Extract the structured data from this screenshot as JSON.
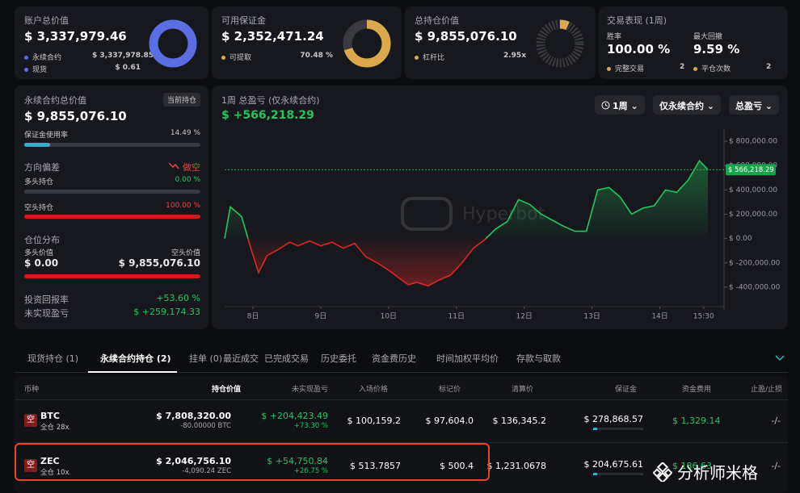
{
  "cards": [
    {
      "title": "账户总价值",
      "value": "$ 3,337,979.46",
      "rows": [
        {
          "label": "永续合约",
          "value": "$ 3,337,978.85"
        },
        {
          "label": "现货",
          "value": "$ 0.61"
        }
      ]
    },
    {
      "title": "可用保证金",
      "value": "$ 2,352,471.24",
      "rows": [
        {
          "label": "可提取",
          "value": "70.48 %"
        }
      ]
    },
    {
      "title": "总持仓价值",
      "value": "$ 9,855,076.10",
      "rows": [
        {
          "label": "杠杆比",
          "value": "2.95x"
        }
      ]
    },
    {
      "title": "交易表现 (1周)",
      "stats": [
        {
          "label": "胜率",
          "value": "100.00 %"
        },
        {
          "label": "最大回撤",
          "value": "9.59 %"
        }
      ],
      "rows": [
        {
          "label": "完整交易",
          "value": "2"
        },
        {
          "label": "平仓次数",
          "value": "2"
        }
      ]
    }
  ],
  "summary": {
    "title": "永续合约总价值",
    "badge": "当前持仓",
    "value": "$ 9,855,076.10",
    "margin_label": "保证金使用率",
    "margin_value": "14.49 %",
    "bias_label": "方向偏差",
    "bias_value": "做空",
    "long_label": "多头持仓",
    "long_value": "0.00 %",
    "short_label": "空头持仓",
    "short_value": "100.00 %",
    "dist_label": "仓位分布",
    "long_amount_label": "多头价值",
    "short_amount_label": "空头价值",
    "long_amount": "$ 0.00",
    "short_amount": "$ 9,855,076.10",
    "roi_label": "投资回报率",
    "roi_value": "+53.60 %",
    "upnl_label": "未实现盈亏",
    "upnl_value": "$ +259,174.33"
  },
  "chart_data": {
    "type": "line",
    "title": "1周 总盈亏 (仅永续合约)",
    "subtitle": "$ +566,218.29",
    "filters": [
      "1周",
      "仅永续合约",
      "总盈亏"
    ],
    "watermark": "Hyperbot",
    "x": [
      -10,
      -8,
      -4,
      -1,
      2,
      5,
      9,
      13,
      16,
      20,
      24,
      28,
      32,
      36,
      40,
      44,
      48,
      52,
      55,
      58,
      62,
      66,
      70,
      74,
      78,
      82,
      86,
      90,
      94,
      98,
      102,
      106,
      110,
      114,
      118,
      122,
      126,
      130,
      134,
      138,
      142,
      146,
      150,
      154,
      158,
      161
    ],
    "values": [
      0,
      260000,
      180000,
      -60000,
      -280000,
      -140000,
      -90000,
      -30000,
      -60000,
      -20000,
      -60000,
      -30000,
      -80000,
      -40000,
      -150000,
      -200000,
      -260000,
      -330000,
      -380000,
      -360000,
      -390000,
      -340000,
      -300000,
      -200000,
      -80000,
      -10000,
      80000,
      140000,
      320000,
      280000,
      200000,
      150000,
      100000,
      60000,
      60000,
      400000,
      420000,
      340000,
      200000,
      250000,
      270000,
      400000,
      380000,
      480000,
      640000,
      566218.29
    ],
    "color_up": "#22c55e",
    "color_down": "#dc2626",
    "xlim": [
      -10,
      165
    ],
    "xticks": [
      {
        "value": 0,
        "label": "8日"
      },
      {
        "value": 24,
        "label": "9日"
      },
      {
        "value": 48,
        "label": "10日"
      },
      {
        "value": 72,
        "label": "11日"
      },
      {
        "value": 96,
        "label": "12日"
      },
      {
        "value": 120,
        "label": "13日"
      },
      {
        "value": 144,
        "label": "14日"
      },
      {
        "value": 159.5,
        "label": "15:30"
      }
    ],
    "ylim": [
      -560000,
      900000
    ],
    "yticks": [
      {
        "value": 800000,
        "label": "$ 800,000.00"
      },
      {
        "value": 600000,
        "label": "$ 600,000.00"
      },
      {
        "value": 400000,
        "label": "$ 400,000.00"
      },
      {
        "value": 200000,
        "label": "$ 200,000.00"
      },
      {
        "value": 0,
        "label": "$ 0.00"
      },
      {
        "value": -200000,
        "label": "$ -200,000.00"
      },
      {
        "value": -400000,
        "label": "$ -400,000.00"
      }
    ],
    "marker": {
      "value": 566218.29,
      "label": "$ 566,218.29"
    }
  },
  "tabs": [
    "现货持仓 (1)",
    "永续合约持仓 (2)",
    "挂单 (0)",
    "最近成交",
    "已完成交易",
    "历史委托",
    "资金费历史",
    "时间加权平均价",
    "存款与取款"
  ],
  "active_tab": 1,
  "table": {
    "headers": [
      "币种",
      "持仓价值",
      "未实现盈亏",
      "入场价格",
      "标记价",
      "清算价",
      "保证金",
      "资金费用",
      "止盈/止损"
    ],
    "rows": [
      {
        "side": "空",
        "symbol": "BTC",
        "mode": "全仓 28x",
        "value": "$ 7,808,320.00",
        "size": "-80.00000 BTC",
        "pnl": "$ +204,423.49",
        "pnl_pct": "+73.30 %",
        "entry": "$ 100,159.2",
        "mark": "$ 97,604.0",
        "liq": "$ 136,345.2",
        "margin": "$ 278,868.57",
        "funding": "$ 1,329.14",
        "tpsl": "-/-"
      },
      {
        "side": "空",
        "symbol": "ZEC",
        "mode": "全仓 10x",
        "value": "$ 2,046,756.10",
        "size": "-4,090.24 ZEC",
        "pnl": "$ +54,750.84",
        "pnl_pct": "+26.75 %",
        "entry": "$ 513.7857",
        "mark": "$ 500.4",
        "liq": "$ 1,231.0678",
        "margin": "$ 204,675.61",
        "funding": "$ 186.63",
        "tpsl": "-/-"
      }
    ]
  },
  "watermark": "分析师米格"
}
